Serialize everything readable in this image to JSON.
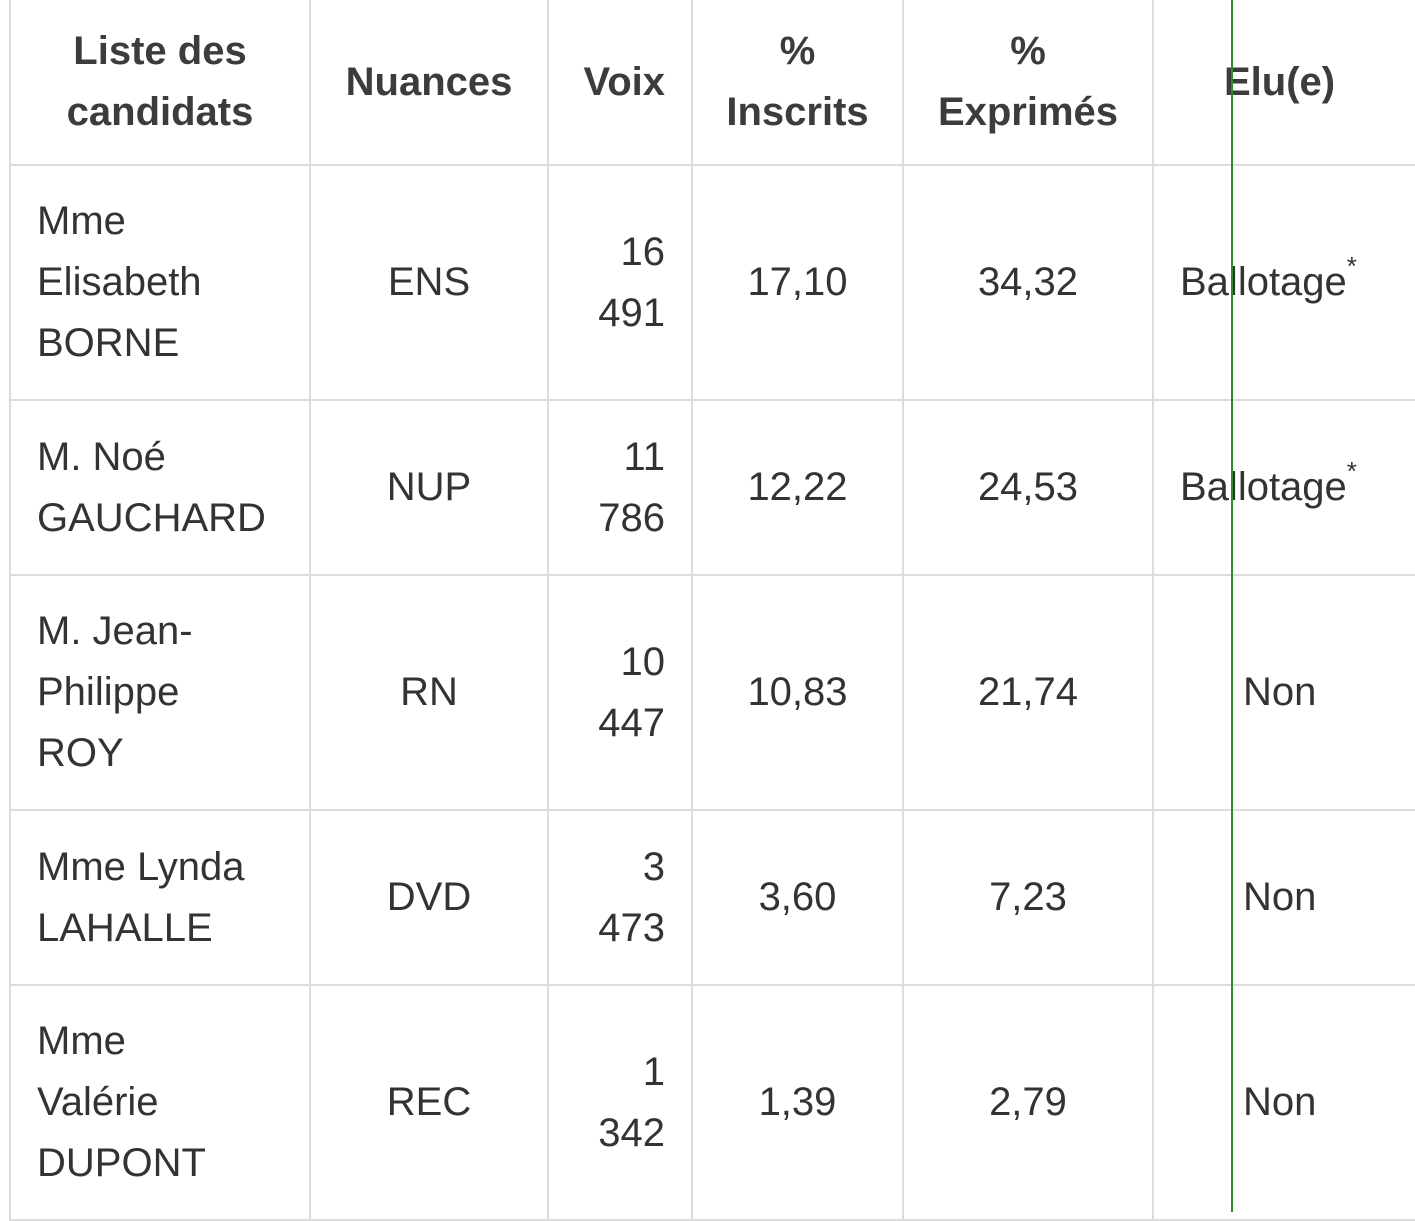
{
  "headers": {
    "candidats_l1": "Liste des",
    "candidats_l2": "candidats",
    "nuances": "Nuances",
    "voix": "Voix",
    "inscrits_l1": "%",
    "inscrits_l2": "Inscrits",
    "exprimes_l1": "%",
    "exprimes_l2": "Exprimés",
    "elu": "Elu(e)"
  },
  "rows": [
    {
      "name_lines": [
        "Mme",
        "Elisabeth",
        "BORNE"
      ],
      "nuance": "ENS",
      "voix_lines": [
        "16",
        "491"
      ],
      "inscrits": "17,10",
      "exprimes": "34,32",
      "elu": "Ballotage",
      "elu_mark": "*"
    },
    {
      "name_lines": [
        "M. Noé",
        "GAUCHARD"
      ],
      "nuance": "NUP",
      "voix_lines": [
        "11",
        "786"
      ],
      "inscrits": "12,22",
      "exprimes": "24,53",
      "elu": "Ballotage",
      "elu_mark": "*"
    },
    {
      "name_lines": [
        "M. Jean-",
        "Philippe",
        "ROY"
      ],
      "nuance": "RN",
      "voix_lines": [
        "10",
        "447"
      ],
      "inscrits": "10,83",
      "exprimes": "21,74",
      "elu": "Non"
    },
    {
      "name_lines": [
        "Mme Lynda",
        "LAHALLE"
      ],
      "nuance": "DVD",
      "voix_lines": [
        "3",
        "473"
      ],
      "inscrits": "3,60",
      "exprimes": "7,23",
      "elu": "Non"
    },
    {
      "name_lines": [
        "Mme",
        "Valérie",
        "DUPONT"
      ],
      "nuance": "REC",
      "voix_lines": [
        "1",
        "342"
      ],
      "inscrits": "1,39",
      "exprimes": "2,79",
      "elu": "Non"
    }
  ],
  "colors": {
    "border": "#dcdcdc",
    "text": "#333333",
    "scroll_indicator": "#2e8b2e"
  }
}
